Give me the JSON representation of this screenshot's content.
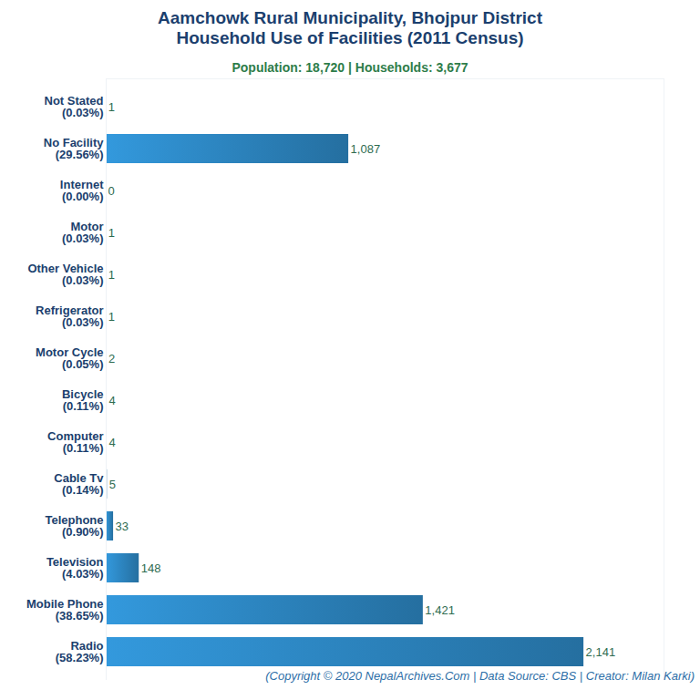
{
  "chart_data": {
    "type": "bar",
    "orientation": "horizontal",
    "title": "Aamchowk Rural Municipality, Bhojpur District\nHousehold Use of Facilities (2011 Census)",
    "subtitle": "Population: 18,720 | Households: 3,677",
    "caption": "(Copyright © 2020 NepalArchives.Com | Data Source: CBS | Creator: Milan Karki)",
    "categories": [
      "Not Stated\n(0.03%)",
      "No Facility\n(29.56%)",
      "Internet\n(0.00%)",
      "Motor\n(0.03%)",
      "Other Vehicle\n(0.03%)",
      "Refrigerator\n(0.03%)",
      "Motor Cycle\n(0.05%)",
      "Bicycle\n(0.11%)",
      "Computer\n(0.11%)",
      "Cable Tv\n(0.14%)",
      "Telephone\n(0.90%)",
      "Television\n(4.03%)",
      "Mobile Phone\n(38.65%)",
      "Radio\n(58.23%)"
    ],
    "values": [
      1,
      1087,
      0,
      1,
      1,
      1,
      2,
      4,
      4,
      5,
      33,
      148,
      1421,
      2141
    ],
    "value_labels": [
      "1",
      "1,087",
      "0",
      "1",
      "1",
      "1",
      "2",
      "4",
      "4",
      "5",
      "33",
      "148",
      "1,421",
      "2,141"
    ],
    "data_labels": true,
    "color": "#3399dd",
    "xlim": [
      0,
      2500
    ],
    "tick_labels": "y",
    "grid": false
  }
}
